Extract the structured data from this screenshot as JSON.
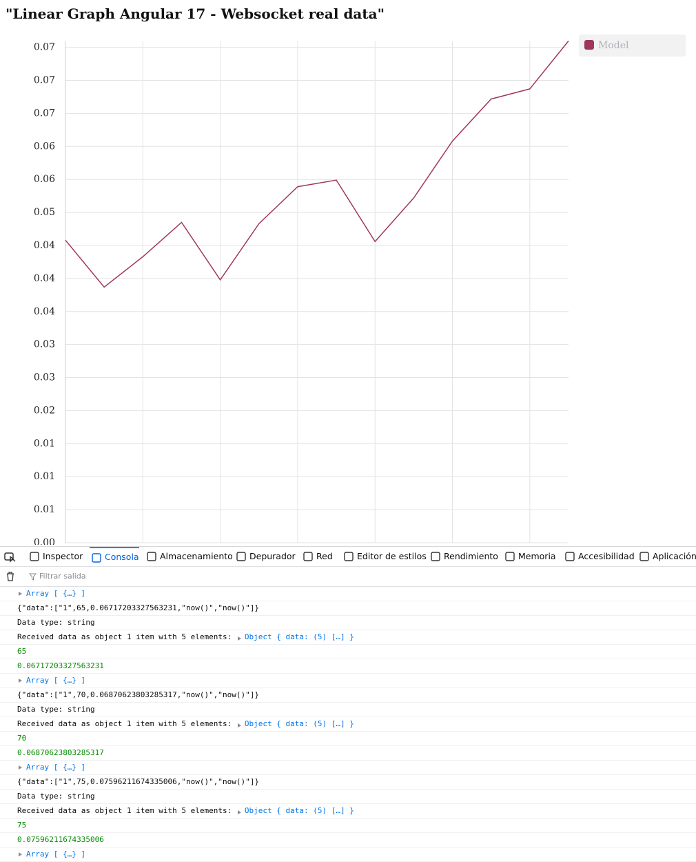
{
  "page_title": "\"Linear Graph Angular 17 - Websocket real data\"",
  "chart_data": {
    "type": "line",
    "categories": [
      null,
      null,
      null,
      null,
      null,
      null,
      null,
      null,
      null,
      null,
      null,
      null,
      null,
      null
    ],
    "series": [
      {
        "name": "Model",
        "color": "#a0375a",
        "values": [
          0.0458,
          0.0387,
          0.0433,
          0.0485,
          0.0398,
          0.0483,
          0.0539,
          0.0549,
          0.0456,
          0.0522,
          0.0608,
          0.06717203327563231,
          0.06870623803285317,
          0.07596211674335006
        ]
      }
    ],
    "ylim": [
      0,
      0.0759
    ],
    "yticks": [
      {
        "value": 0,
        "label": "0.00"
      },
      {
        "value": 0.005,
        "label": "0.01"
      },
      {
        "value": 0.01,
        "label": "0.01"
      },
      {
        "value": 0.015,
        "label": "0.01"
      },
      {
        "value": 0.02,
        "label": "0.02"
      },
      {
        "value": 0.025,
        "label": "0.03"
      },
      {
        "value": 0.03,
        "label": "0.03"
      },
      {
        "value": 0.035,
        "label": "0.04"
      },
      {
        "value": 0.04,
        "label": "0.04"
      },
      {
        "value": 0.045,
        "label": "0.04"
      },
      {
        "value": 0.05,
        "label": "0.05"
      },
      {
        "value": 0.055,
        "label": "0.06"
      },
      {
        "value": 0.06,
        "label": "0.06"
      },
      {
        "value": 0.065,
        "label": "0.07"
      },
      {
        "value": 0.07,
        "label": "0.07"
      },
      {
        "value": 0.075,
        "label": "0.07"
      }
    ],
    "grid": true,
    "legend": "top-right"
  },
  "devtools": {
    "tabs": [
      "Inspector",
      "Consola",
      "Almacenamiento",
      "Depurador",
      "Red",
      "Editor de estilos",
      "Rendimiento",
      "Memoria",
      "Accesibilidad",
      "Aplicación"
    ],
    "active_tab": 1,
    "filter_placeholder": "Filtrar salida",
    "console": [
      {
        "kind": "array",
        "text": "Array [ {…} ]"
      },
      {
        "kind": "string",
        "text": "{\"data\":[\"1\",65,0.06717203327563231,\"now()\",\"now()\"]}"
      },
      {
        "kind": "string",
        "text": "Data type: string"
      },
      {
        "kind": "object",
        "text": "Received data as object 1 item with 5 elements: ",
        "link": "Object { data: (5) […] }"
      },
      {
        "kind": "number",
        "text": "65"
      },
      {
        "kind": "number",
        "text": "0.06717203327563231"
      },
      {
        "kind": "array",
        "text": "Array [ {…} ]"
      },
      {
        "kind": "string",
        "text": "{\"data\":[\"1\",70,0.06870623803285317,\"now()\",\"now()\"]}"
      },
      {
        "kind": "string",
        "text": "Data type: string"
      },
      {
        "kind": "object",
        "text": "Received data as object 1 item with 5 elements: ",
        "link": "Object { data: (5) […] }"
      },
      {
        "kind": "number",
        "text": "70"
      },
      {
        "kind": "number",
        "text": "0.06870623803285317"
      },
      {
        "kind": "array",
        "text": "Array [ {…} ]"
      },
      {
        "kind": "string",
        "text": "{\"data\":[\"1\",75,0.07596211674335006,\"now()\",\"now()\"]}"
      },
      {
        "kind": "string",
        "text": "Data type: string"
      },
      {
        "kind": "object",
        "text": "Received data as object 1 item with 5 elements: ",
        "link": "Object { data: (5) […] }"
      },
      {
        "kind": "number",
        "text": "75"
      },
      {
        "kind": "number",
        "text": "0.07596211674335006"
      },
      {
        "kind": "array",
        "text": "Array [ {…} ]"
      }
    ]
  }
}
